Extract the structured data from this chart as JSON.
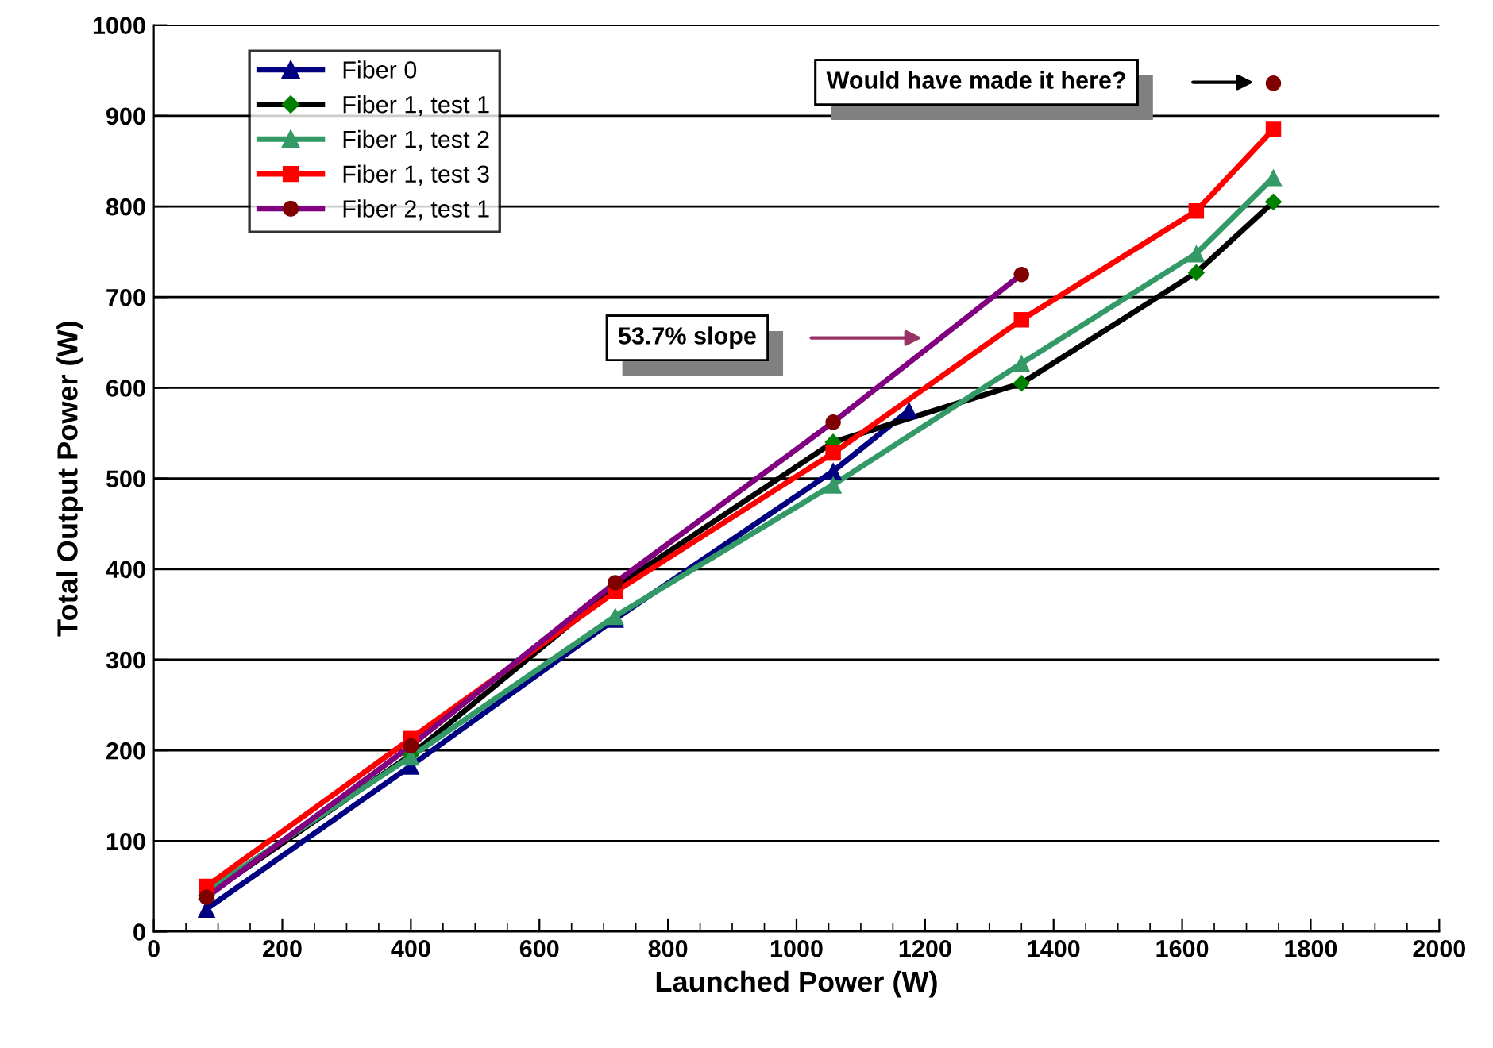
{
  "chart_data": {
    "type": "line",
    "xlabel": "Launched Power (W)",
    "ylabel": "Total Output Power (W)",
    "xlim": [
      0,
      2000
    ],
    "xticks": [
      0,
      200,
      400,
      600,
      800,
      1000,
      1200,
      1400,
      1600,
      1800,
      2000
    ],
    "ylim": [
      0,
      1000
    ],
    "yticks": [
      0,
      100,
      200,
      300,
      400,
      500,
      600,
      700,
      800,
      900,
      1000
    ],
    "grid": "y",
    "legend": "top left",
    "line_style": "solid",
    "annotations": [
      "Would have made it here?",
      "53.7% slope"
    ],
    "series": [
      {
        "name": "Fiber 0",
        "color": "#000080",
        "marker": "triangle",
        "x": [
          82,
          400,
          718,
          1057,
          1175
        ],
        "values": [
          25,
          183,
          345,
          508,
          575
        ]
      },
      {
        "name": "Fiber 1, test 1",
        "color": "#000000",
        "colors": [
          "#008000",
          "#008000",
          "#008000",
          "#008000",
          "#008000",
          "#008000",
          "#008000"
        ],
        "marker": "diamond",
        "x": [
          82,
          400,
          718,
          1057,
          1350,
          1622,
          1742
        ],
        "values": [
          40,
          195,
          380,
          540,
          605,
          727,
          805
        ]
      },
      {
        "name": "Fiber 1, test 2",
        "color": "#339966",
        "marker": "triangle",
        "x": [
          82,
          400,
          718,
          1057,
          1350,
          1622,
          1742
        ],
        "values": [
          45,
          193,
          348,
          493,
          627,
          748,
          832
        ]
      },
      {
        "name": "Fiber 1, test 3",
        "color": "#ff0000",
        "marker": "square",
        "x": [
          82,
          400,
          718,
          1057,
          1350,
          1622,
          1742
        ],
        "values": [
          50,
          213,
          375,
          528,
          675,
          795,
          885
        ]
      },
      {
        "name": "Fiber 2, test 1",
        "color": "#800080",
        "colors": [
          "#800000",
          "#800000",
          "#800000",
          "#800000",
          "#800000",
          "#800000",
          "#800000"
        ],
        "marker": "circle",
        "x": [
          82,
          400,
          718,
          1057,
          1350,
          1622,
          1742
        ],
        "values": [
          38,
          205,
          385,
          562,
          725,
          null,
          936
        ]
      }
    ]
  }
}
